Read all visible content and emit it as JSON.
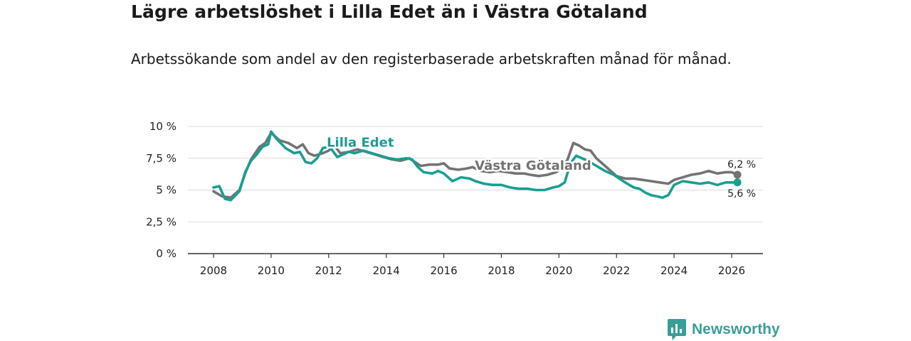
{
  "title": "Lägre arbetslöshet i Lilla Edet än i Västra Götaland",
  "subtitle": "Arbetssökande som andel av den registerbaserade arbetskraften månad för månad.",
  "brand": {
    "name": "Newsworthy",
    "icon": "newsworthy-logo-icon",
    "color": "#3a9e98"
  },
  "chart_data": {
    "type": "line",
    "title": "Lägre arbetslöshet i Lilla Edet än i Västra Götaland",
    "xlabel": "",
    "ylabel": "",
    "xlim": [
      2007.5,
      2027.0
    ],
    "ylim": [
      0,
      10
    ],
    "y_ticks": [
      0,
      2.5,
      5,
      7.5,
      10
    ],
    "y_tick_labels": [
      "0 %",
      "2,5 %",
      "5 %",
      "7,5 %",
      "10 %"
    ],
    "x_ticks": [
      2008,
      2010,
      2012,
      2014,
      2016,
      2018,
      2020,
      2022,
      2024,
      2026
    ],
    "x_tick_labels": [
      "2008",
      "2010",
      "2012",
      "2014",
      "2016",
      "2018",
      "2020",
      "2022",
      "2024",
      "2026"
    ],
    "grid": true,
    "series": [
      {
        "name": "Västra Götaland",
        "color": "#737373",
        "end_label": "6,2 %",
        "x": [
          2008.0,
          2008.3,
          2008.6,
          2008.9,
          2009.1,
          2009.3,
          2009.6,
          2009.8,
          2010.0,
          2010.3,
          2010.6,
          2010.9,
          2011.1,
          2011.3,
          2011.5,
          2011.8,
          2012.0,
          2012.2,
          2012.4,
          2012.7,
          2013.0,
          2013.3,
          2013.6,
          2013.9,
          2014.2,
          2014.5,
          2014.8,
          2015.0,
          2015.2,
          2015.5,
          2015.8,
          2016.0,
          2016.2,
          2016.5,
          2016.8,
          2017.0,
          2017.3,
          2017.6,
          2017.9,
          2018.2,
          2018.5,
          2018.8,
          2019.0,
          2019.3,
          2019.6,
          2019.9,
          2020.1,
          2020.3,
          2020.5,
          2020.7,
          2020.9,
          2021.1,
          2021.3,
          2021.5,
          2021.8,
          2022.0,
          2022.3,
          2022.6,
          2022.9,
          2023.2,
          2023.5,
          2023.8,
          2024.0,
          2024.3,
          2024.6,
          2024.9,
          2025.2,
          2025.5,
          2025.8,
          2026.0,
          2026.2
        ],
        "values": [
          4.9,
          4.5,
          4.4,
          5.0,
          6.3,
          7.4,
          8.4,
          8.7,
          9.5,
          8.9,
          8.7,
          8.3,
          8.6,
          7.9,
          7.7,
          7.9,
          8.1,
          8.5,
          7.9,
          8.0,
          8.2,
          8.0,
          7.8,
          7.6,
          7.4,
          7.3,
          7.5,
          7.2,
          6.9,
          7.0,
          7.0,
          7.1,
          6.7,
          6.6,
          6.7,
          6.8,
          6.5,
          6.4,
          6.5,
          6.4,
          6.3,
          6.3,
          6.2,
          6.1,
          6.2,
          6.4,
          6.7,
          7.4,
          8.7,
          8.5,
          8.2,
          8.1,
          7.5,
          7.1,
          6.5,
          6.1,
          5.9,
          5.9,
          5.8,
          5.7,
          5.6,
          5.5,
          5.8,
          6.0,
          6.2,
          6.3,
          6.5,
          6.3,
          6.4,
          6.4,
          6.2
        ]
      },
      {
        "name": "Lilla Edet",
        "color": "#1a9e92",
        "end_label": "5,6 %",
        "x": [
          2008.0,
          2008.2,
          2008.4,
          2008.6,
          2008.9,
          2009.1,
          2009.3,
          2009.5,
          2009.7,
          2009.9,
          2010.0,
          2010.2,
          2010.5,
          2010.8,
          2011.0,
          2011.2,
          2011.4,
          2011.6,
          2011.8,
          2012.0,
          2012.1,
          2012.3,
          2012.5,
          2012.7,
          2012.9,
          2013.2,
          2013.5,
          2013.8,
          2014.1,
          2014.4,
          2014.7,
          2014.9,
          2015.1,
          2015.3,
          2015.6,
          2015.8,
          2016.0,
          2016.3,
          2016.6,
          2016.9,
          2017.1,
          2017.4,
          2017.7,
          2018.0,
          2018.3,
          2018.6,
          2018.9,
          2019.2,
          2019.5,
          2019.8,
          2020.0,
          2020.2,
          2020.4,
          2020.6,
          2020.8,
          2021.0,
          2021.3,
          2021.6,
          2021.9,
          2022.1,
          2022.3,
          2022.6,
          2022.8,
          2023.0,
          2023.2,
          2023.4,
          2023.6,
          2023.8,
          2024.0,
          2024.3,
          2024.6,
          2024.9,
          2025.2,
          2025.5,
          2025.8,
          2026.0,
          2026.2
        ],
        "values": [
          5.2,
          5.3,
          4.3,
          4.2,
          4.9,
          6.4,
          7.3,
          7.8,
          8.4,
          8.6,
          9.6,
          9.0,
          8.3,
          7.9,
          8.0,
          7.2,
          7.1,
          7.5,
          8.3,
          8.4,
          8.2,
          7.6,
          7.8,
          8.0,
          7.9,
          8.1,
          7.9,
          7.7,
          7.5,
          7.4,
          7.5,
          7.4,
          6.8,
          6.4,
          6.3,
          6.5,
          6.3,
          5.7,
          6.0,
          5.9,
          5.7,
          5.5,
          5.4,
          5.4,
          5.2,
          5.1,
          5.1,
          5.0,
          5.0,
          5.2,
          5.3,
          5.6,
          7.1,
          7.7,
          7.5,
          7.3,
          6.9,
          6.5,
          6.2,
          5.9,
          5.6,
          5.2,
          5.1,
          4.8,
          4.6,
          4.5,
          4.4,
          4.6,
          5.4,
          5.7,
          5.6,
          5.5,
          5.6,
          5.4,
          5.6,
          5.6,
          5.6
        ]
      }
    ],
    "annotations": [
      {
        "text": "Lilla Edet",
        "series": "Lilla Edet",
        "at_x": 2013.1,
        "at_y": 8.4
      },
      {
        "text": "Västra Götaland",
        "series": "Västra Götaland",
        "at_x": 2019.1,
        "at_y": 6.6
      }
    ]
  }
}
